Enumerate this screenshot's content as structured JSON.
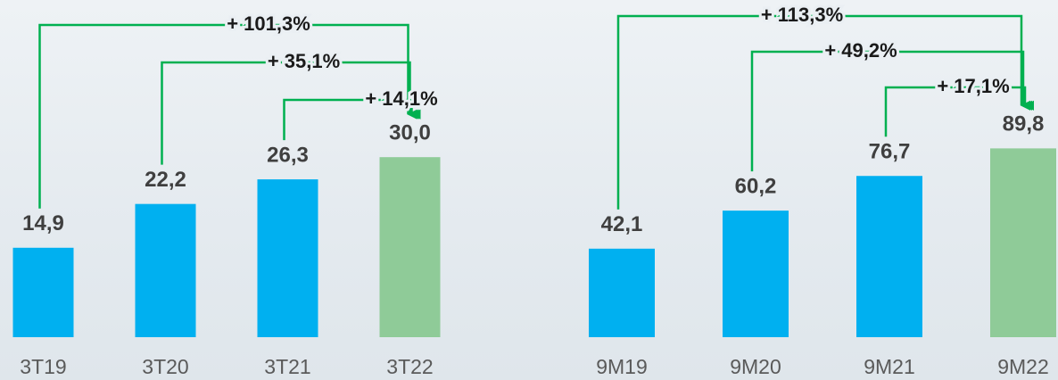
{
  "chart_data": [
    {
      "type": "bar",
      "categories": [
        "3T19",
        "3T20",
        "3T21",
        "3T22"
      ],
      "values": [
        14.9,
        22.2,
        26.3,
        30.0
      ],
      "value_labels": [
        "14,9",
        "22,2",
        "26,3",
        "30,0"
      ],
      "colors": [
        "#00b0f0",
        "#00b0f0",
        "#00b0f0",
        "#8fcb98"
      ],
      "ylim": [
        0,
        55
      ],
      "annotations": [
        "+ 101,3%",
        "+ 35,1%",
        "+ 14,1%"
      ],
      "annotation_color": "#00b050"
    },
    {
      "type": "bar",
      "categories": [
        "9M19",
        "9M20",
        "9M21",
        "9M22"
      ],
      "values": [
        42.1,
        60.2,
        76.7,
        89.8
      ],
      "value_labels": [
        "42,1",
        "60,2",
        "76,7",
        "89,8"
      ],
      "colors": [
        "#00b0f0",
        "#00b0f0",
        "#00b0f0",
        "#8fcb98"
      ],
      "ylim": [
        0,
        157
      ],
      "annotations": [
        "+ 113,3%",
        "+ 49,2%",
        "+ 17,1%"
      ],
      "annotation_color": "#00b050"
    }
  ]
}
